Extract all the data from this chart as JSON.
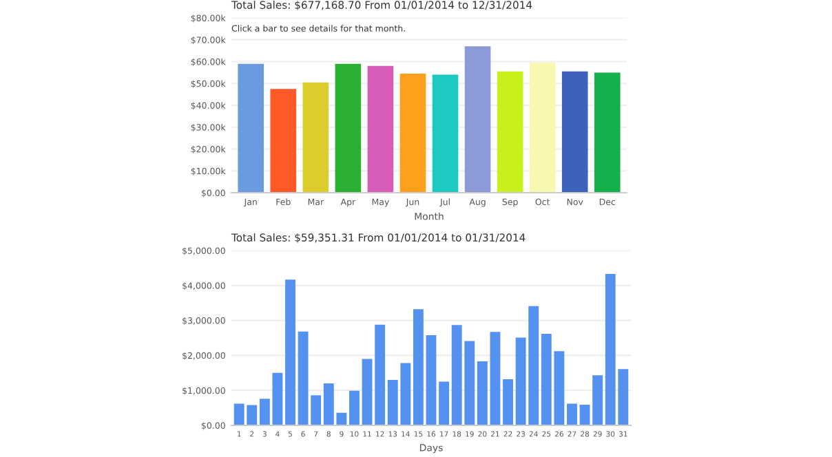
{
  "chart_data": [
    {
      "type": "bar",
      "title": "Total Sales: $677,168.70 From 01/01/2014 to 12/31/2014",
      "subtitle": "Click a bar to see details for that month.",
      "xlabel": "Month",
      "categories": [
        "Jan",
        "Feb",
        "Mar",
        "Apr",
        "May",
        "Jun",
        "Jul",
        "Aug",
        "Sep",
        "Oct",
        "Nov",
        "Dec"
      ],
      "values": [
        59000,
        47500,
        50500,
        59000,
        58000,
        54500,
        54000,
        67000,
        55500,
        59500,
        55500,
        55000
      ],
      "colors": [
        "#6a9ae0",
        "#ff5a28",
        "#dccc2c",
        "#2cb034",
        "#d65cb8",
        "#ffa01c",
        "#1ccac2",
        "#8c9ad8",
        "#c8f01c",
        "#f8f8b0",
        "#3c62bc",
        "#14b04c"
      ],
      "ylim": [
        0,
        80000
      ],
      "yticks": [
        {
          "value": 0,
          "label": "$0.00"
        },
        {
          "value": 10000,
          "label": "$10.00k"
        },
        {
          "value": 20000,
          "label": "$20.00k"
        },
        {
          "value": 30000,
          "label": "$30.00k"
        },
        {
          "value": 40000,
          "label": "$40.00k"
        },
        {
          "value": 50000,
          "label": "$50.00k"
        },
        {
          "value": 60000,
          "label": "$60.00k"
        },
        {
          "value": 70000,
          "label": "$70.00k"
        },
        {
          "value": 80000,
          "label": "$80.00k"
        }
      ],
      "grid": "y"
    },
    {
      "type": "bar",
      "title": "Total Sales: $59,351.31 From 01/01/2014 to 01/31/2014",
      "xlabel": "Days",
      "categories": [
        "1",
        "2",
        "3",
        "4",
        "5",
        "6",
        "7",
        "8",
        "9",
        "10",
        "11",
        "12",
        "13",
        "14",
        "15",
        "16",
        "17",
        "18",
        "19",
        "20",
        "21",
        "22",
        "23",
        "24",
        "25",
        "26",
        "27",
        "28",
        "29",
        "30",
        "31"
      ],
      "values": [
        620,
        580,
        760,
        1500,
        4170,
        2680,
        860,
        1200,
        360,
        990,
        1900,
        2880,
        1300,
        1780,
        3320,
        2580,
        1250,
        2870,
        2410,
        1830,
        2670,
        1320,
        2510,
        3410,
        2620,
        2120,
        620,
        590,
        1430,
        4330,
        1610
      ],
      "color": "#5591ef",
      "ylim": [
        0,
        5000
      ],
      "yticks": [
        {
          "value": 0,
          "label": "$0.00"
        },
        {
          "value": 1000,
          "label": "$1,000.00"
        },
        {
          "value": 2000,
          "label": "$2,000.00"
        },
        {
          "value": 3000,
          "label": "$3,000.00"
        },
        {
          "value": 4000,
          "label": "$4,000.00"
        },
        {
          "value": 5000,
          "label": "$5,000.00"
        }
      ],
      "grid": "y"
    }
  ]
}
